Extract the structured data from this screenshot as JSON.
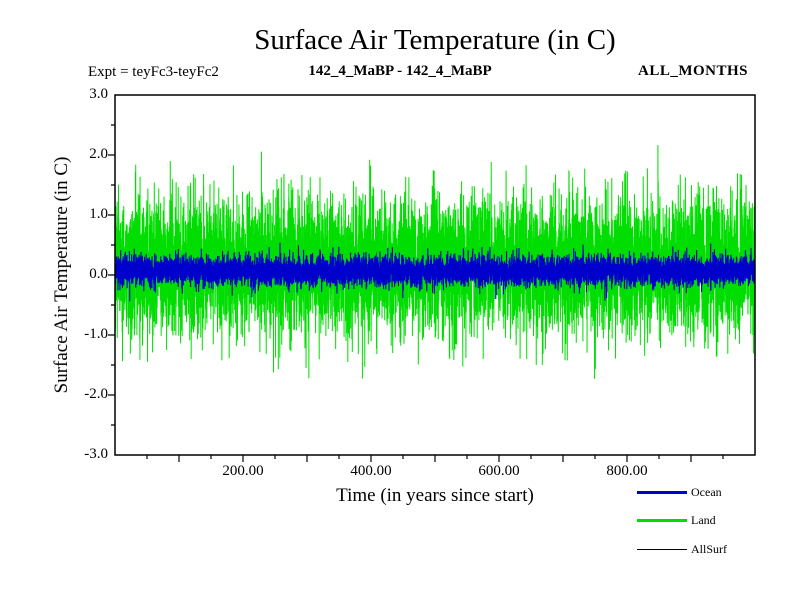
{
  "page": {
    "background": "#ffffff"
  },
  "header": {
    "title": "Surface Air Temperature (in C)",
    "subtitle_left": "Expt = teyFc3-teyFc2",
    "subtitle_center": "142_4_MaBP - 142_4_MaBP",
    "subtitle_right": "ALL_MONTHS"
  },
  "chart_data": {
    "type": "line",
    "title": "Surface Air Temperature (in C)",
    "xlabel": "Time (in years since start)",
    "ylabel": "Surface Air Temperature (in C)",
    "xlim": [
      0,
      1000
    ],
    "ylim": [
      -3.0,
      3.0
    ],
    "grid": false,
    "frame_color": "#000000",
    "x_ticks": {
      "values": [
        200,
        400,
        600,
        800
      ],
      "labels": [
        "200.00",
        "400.00",
        "600.00",
        "800.00"
      ],
      "minor_step": 50,
      "major_step": 100
    },
    "y_ticks": {
      "values": [
        -3,
        -2,
        -1,
        0,
        1,
        2,
        3
      ],
      "labels": [
        "-3.0",
        "-2.0",
        "-1.0",
        "0.0",
        "1.0",
        "2.0",
        "3.0"
      ],
      "minor_step": 0.5
    },
    "series": [
      {
        "name": "Ocean",
        "color": "#0000cd",
        "line_width": 1.1,
        "visible": true,
        "z_order": 2,
        "signal": "random monthly anomaly noise",
        "mean": 0.07,
        "std": 0.13,
        "approx_min": -0.55,
        "approx_max": 0.65,
        "n_points": 8000,
        "seed": 7
      },
      {
        "name": "Land",
        "color": "#00dd00",
        "line_width": 1.0,
        "visible": true,
        "z_order": 1,
        "signal": "random monthly anomaly noise",
        "mean": 0.15,
        "std": 0.55,
        "approx_min": -2.1,
        "approx_max": 2.05,
        "n_points": 8000,
        "seed": 42
      },
      {
        "name": "AllSurf",
        "color": "#000000",
        "line_width": 1.0,
        "visible": false,
        "z_order": 0,
        "signal": "not visible in plot (legend only)"
      }
    ],
    "legend": [
      {
        "label": "Ocean",
        "color": "#0000cd",
        "line_width": 3
      },
      {
        "label": "Land",
        "color": "#00dd00",
        "line_width": 3
      },
      {
        "label": "AllSurf",
        "color": "#000000",
        "line_width": 1
      }
    ],
    "legend_position": "bottom-right-outside"
  }
}
